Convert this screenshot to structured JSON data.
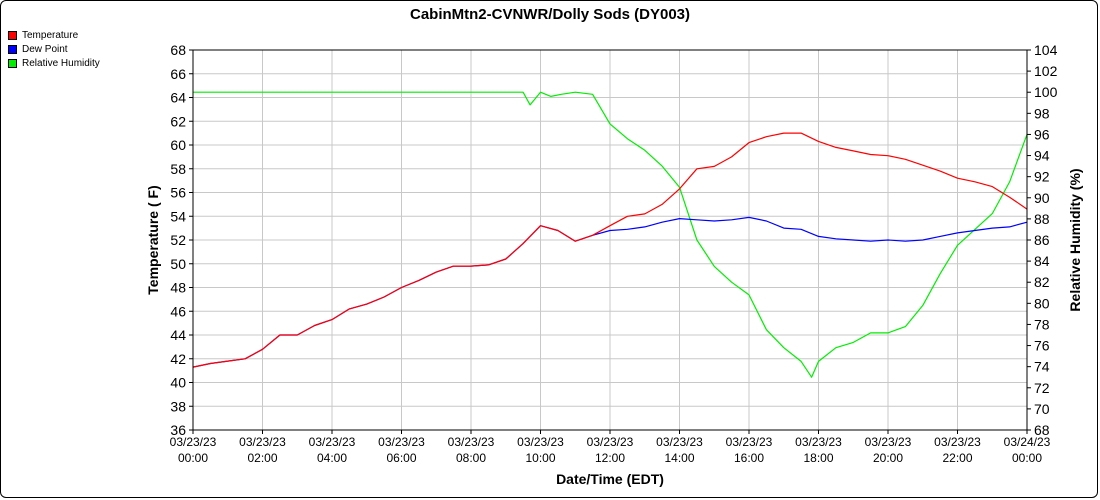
{
  "chart_data": {
    "type": "line",
    "title": "CabinMtn2-CVNWR/Dolly Sods (DY003)",
    "xlabel": "Date/Time (EDT)",
    "ylabel": "Temperature ( F)",
    "y2label": "Relative Humidity (%)",
    "ylim": [
      36,
      68
    ],
    "y2lim": [
      68,
      104
    ],
    "y_ticks": [
      "36",
      "38",
      "40",
      "42",
      "44",
      "46",
      "48",
      "50",
      "52",
      "54",
      "56",
      "58",
      "60",
      "62",
      "64",
      "66",
      "68"
    ],
    "y2_ticks": [
      "68",
      "70",
      "72",
      "74",
      "76",
      "78",
      "80",
      "82",
      "84",
      "86",
      "88",
      "90",
      "92",
      "94",
      "96",
      "98",
      "100",
      "102",
      "104"
    ],
    "x_ticks": [
      {
        "date": "03/23/23",
        "time": "00:00"
      },
      {
        "date": "03/23/23",
        "time": "02:00"
      },
      {
        "date": "03/23/23",
        "time": "04:00"
      },
      {
        "date": "03/23/23",
        "time": "06:00"
      },
      {
        "date": "03/23/23",
        "time": "08:00"
      },
      {
        "date": "03/23/23",
        "time": "10:00"
      },
      {
        "date": "03/23/23",
        "time": "12:00"
      },
      {
        "date": "03/23/23",
        "time": "14:00"
      },
      {
        "date": "03/23/23",
        "time": "16:00"
      },
      {
        "date": "03/23/23",
        "time": "18:00"
      },
      {
        "date": "03/23/23",
        "time": "20:00"
      },
      {
        "date": "03/23/23",
        "time": "22:00"
      },
      {
        "date": "03/24/23",
        "time": "00:00"
      }
    ],
    "grid": true,
    "legend_position": "top-left",
    "series": [
      {
        "name": "Temperature",
        "color": "#ff0000",
        "axis": "left",
        "x_hours": [
          0,
          0.5,
          1,
          1.5,
          2,
          2.5,
          3,
          3.5,
          4,
          4.5,
          5,
          5.5,
          6,
          6.5,
          7,
          7.5,
          8,
          8.5,
          9,
          9.5,
          10,
          10.5,
          11,
          11.5,
          12,
          12.5,
          13,
          13.5,
          14,
          14.5,
          15,
          15.5,
          16,
          16.5,
          17,
          17.5,
          18,
          18.5,
          19,
          19.5,
          20,
          20.5,
          21,
          21.5,
          22,
          22.5,
          23,
          23.5,
          24
        ],
        "values": [
          41.3,
          41.6,
          41.8,
          42.0,
          42.8,
          44.0,
          44.0,
          44.8,
          45.3,
          46.2,
          46.6,
          47.2,
          48.0,
          48.6,
          49.3,
          49.8,
          49.8,
          49.9,
          50.4,
          51.7,
          53.2,
          52.8,
          51.9,
          52.4,
          53.2,
          54.0,
          54.2,
          55.0,
          56.3,
          58.0,
          58.2,
          59.0,
          60.2,
          60.7,
          61.0,
          61.0,
          60.3,
          59.8,
          59.5,
          59.2,
          59.1,
          58.8,
          58.3,
          57.8,
          57.2,
          56.9,
          56.5,
          55.6,
          54.6
        ]
      },
      {
        "name": "Dew Point",
        "color": "#0000ff",
        "axis": "left",
        "x_hours": [
          0,
          0.5,
          1,
          1.5,
          2,
          2.5,
          3,
          3.5,
          4,
          4.5,
          5,
          5.5,
          6,
          6.5,
          7,
          7.5,
          8,
          8.5,
          9,
          9.5,
          10,
          10.5,
          11,
          11.5,
          12,
          12.5,
          13,
          13.5,
          14,
          14.5,
          15,
          15.5,
          16,
          16.5,
          17,
          17.5,
          18,
          18.5,
          19,
          19.5,
          20,
          20.5,
          21,
          21.5,
          22,
          22.5,
          23,
          23.5,
          24
        ],
        "values": [
          41.3,
          41.6,
          41.8,
          42.0,
          42.8,
          44.0,
          44.0,
          44.8,
          45.3,
          46.2,
          46.6,
          47.2,
          48.0,
          48.6,
          49.3,
          49.8,
          49.8,
          49.9,
          50.4,
          51.7,
          53.2,
          52.8,
          51.9,
          52.4,
          52.8,
          52.9,
          53.1,
          53.5,
          53.8,
          53.7,
          53.6,
          53.7,
          53.9,
          53.6,
          53.0,
          52.9,
          52.3,
          52.1,
          52.0,
          51.9,
          52.0,
          51.9,
          52.0,
          52.3,
          52.6,
          52.8,
          53.0,
          53.1,
          53.5
        ]
      },
      {
        "name": "Relative Humidity",
        "color": "#00ee00",
        "axis": "right",
        "x_hours": [
          0,
          1,
          2,
          3,
          4,
          5,
          6,
          7,
          8,
          9,
          9.5,
          9.7,
          10,
          10.3,
          10.6,
          11,
          11.5,
          12,
          12.5,
          13,
          13.5,
          14,
          14.5,
          15,
          15.5,
          16,
          16.5,
          17,
          17.5,
          17.8,
          18,
          18.5,
          19,
          19.5,
          20,
          20.5,
          21,
          21.5,
          22,
          22.5,
          23,
          23.5,
          24
        ],
        "values": [
          100,
          100,
          100,
          100,
          100,
          100,
          100,
          100,
          100,
          100,
          100,
          98.8,
          100,
          99.6,
          99.8,
          100,
          99.8,
          97,
          95.6,
          94.5,
          93,
          91,
          86,
          83.5,
          82,
          80.8,
          77.5,
          75.8,
          74.5,
          73,
          74.5,
          75.8,
          76.3,
          77.2,
          77.2,
          77.8,
          79.8,
          82.8,
          85.5,
          87,
          88.5,
          91.5,
          96
        ]
      }
    ]
  }
}
